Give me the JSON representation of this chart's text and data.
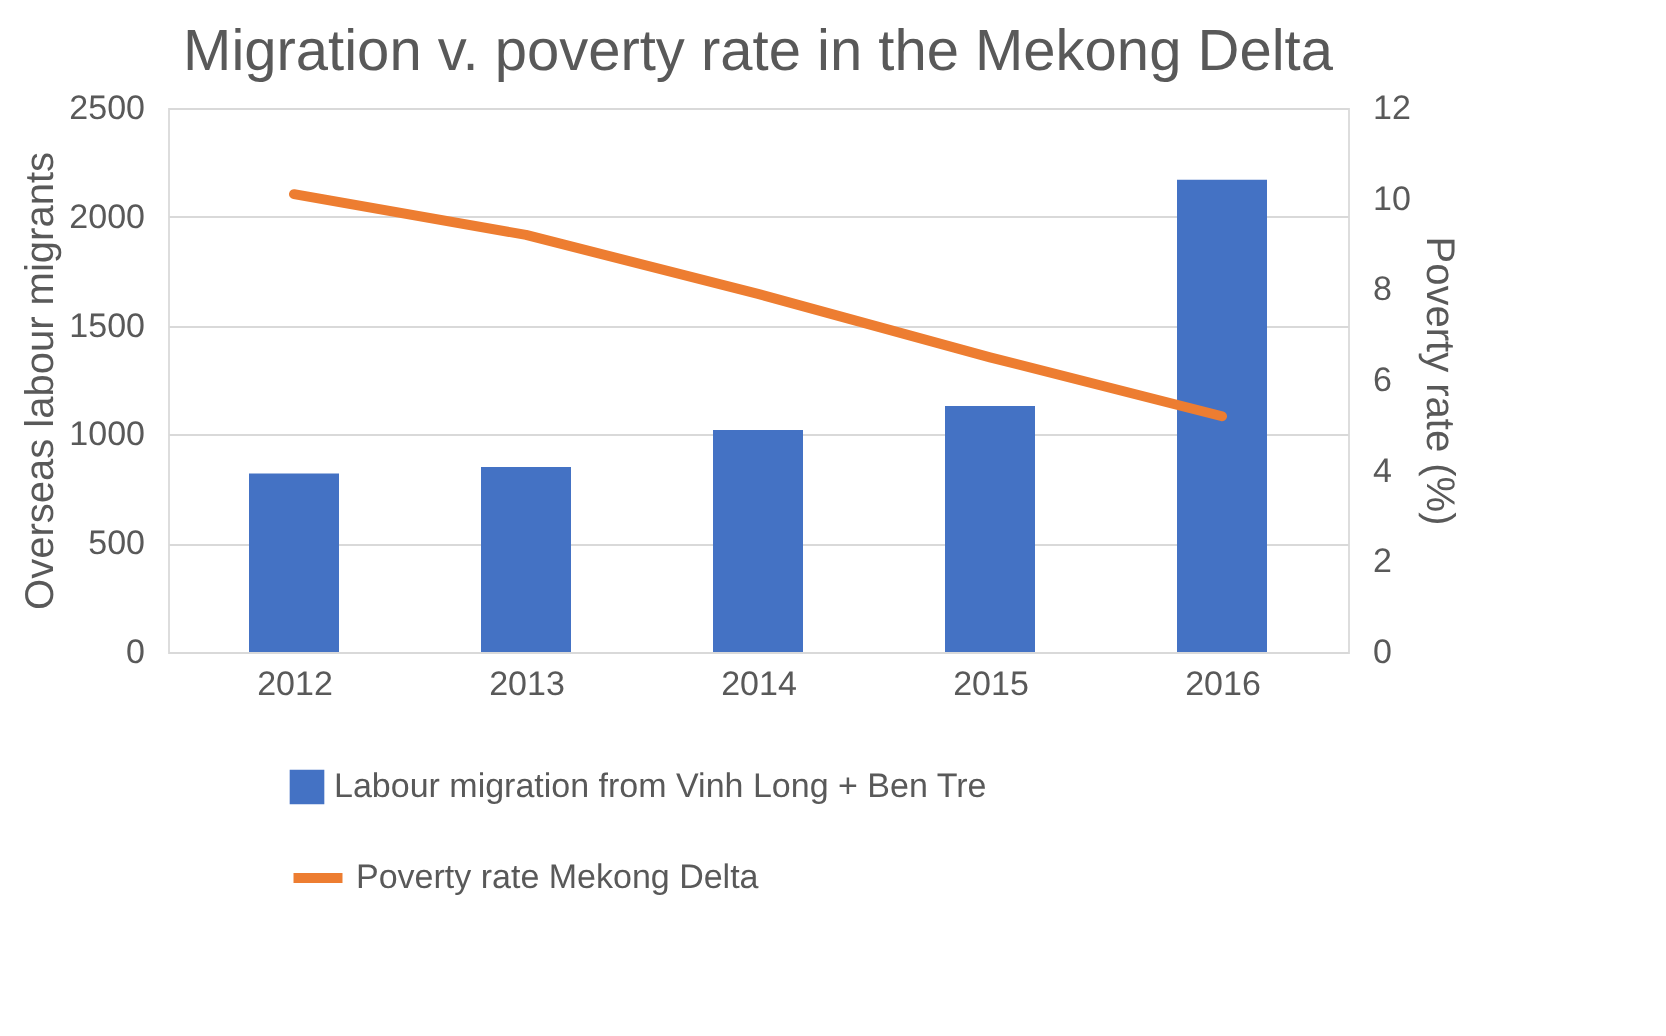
{
  "chart_data": {
    "type": "bar",
    "title": "Migration v. poverty rate in the Mekong Delta",
    "categories": [
      "2012",
      "2013",
      "2014",
      "2015",
      "2016"
    ],
    "ylabel": "Overseas labour migrants",
    "y2label": "Poverty rate (%)",
    "series": [
      {
        "name": "Labour migration from Vinh Long + Ben Tre",
        "color": "#4472c4",
        "values": [
          820,
          850,
          1020,
          1130,
          2170
        ]
      },
      {
        "name": "Poverty rate Mekong Delta",
        "color": "#ed7d31",
        "type": "line",
        "axis": "y2",
        "values": [
          10.1,
          9.2,
          7.9,
          6.5,
          5.2
        ]
      }
    ],
    "ylim": [
      0,
      2500
    ],
    "yticks": [
      0,
      500,
      1000,
      1500,
      2000,
      2500
    ],
    "y2lim": [
      0,
      12
    ],
    "y2ticks": [
      0,
      2,
      4,
      6,
      8,
      10,
      12
    ],
    "grid": "y",
    "legend": "bottom",
    "marker": "none",
    "line_style": "solid"
  }
}
